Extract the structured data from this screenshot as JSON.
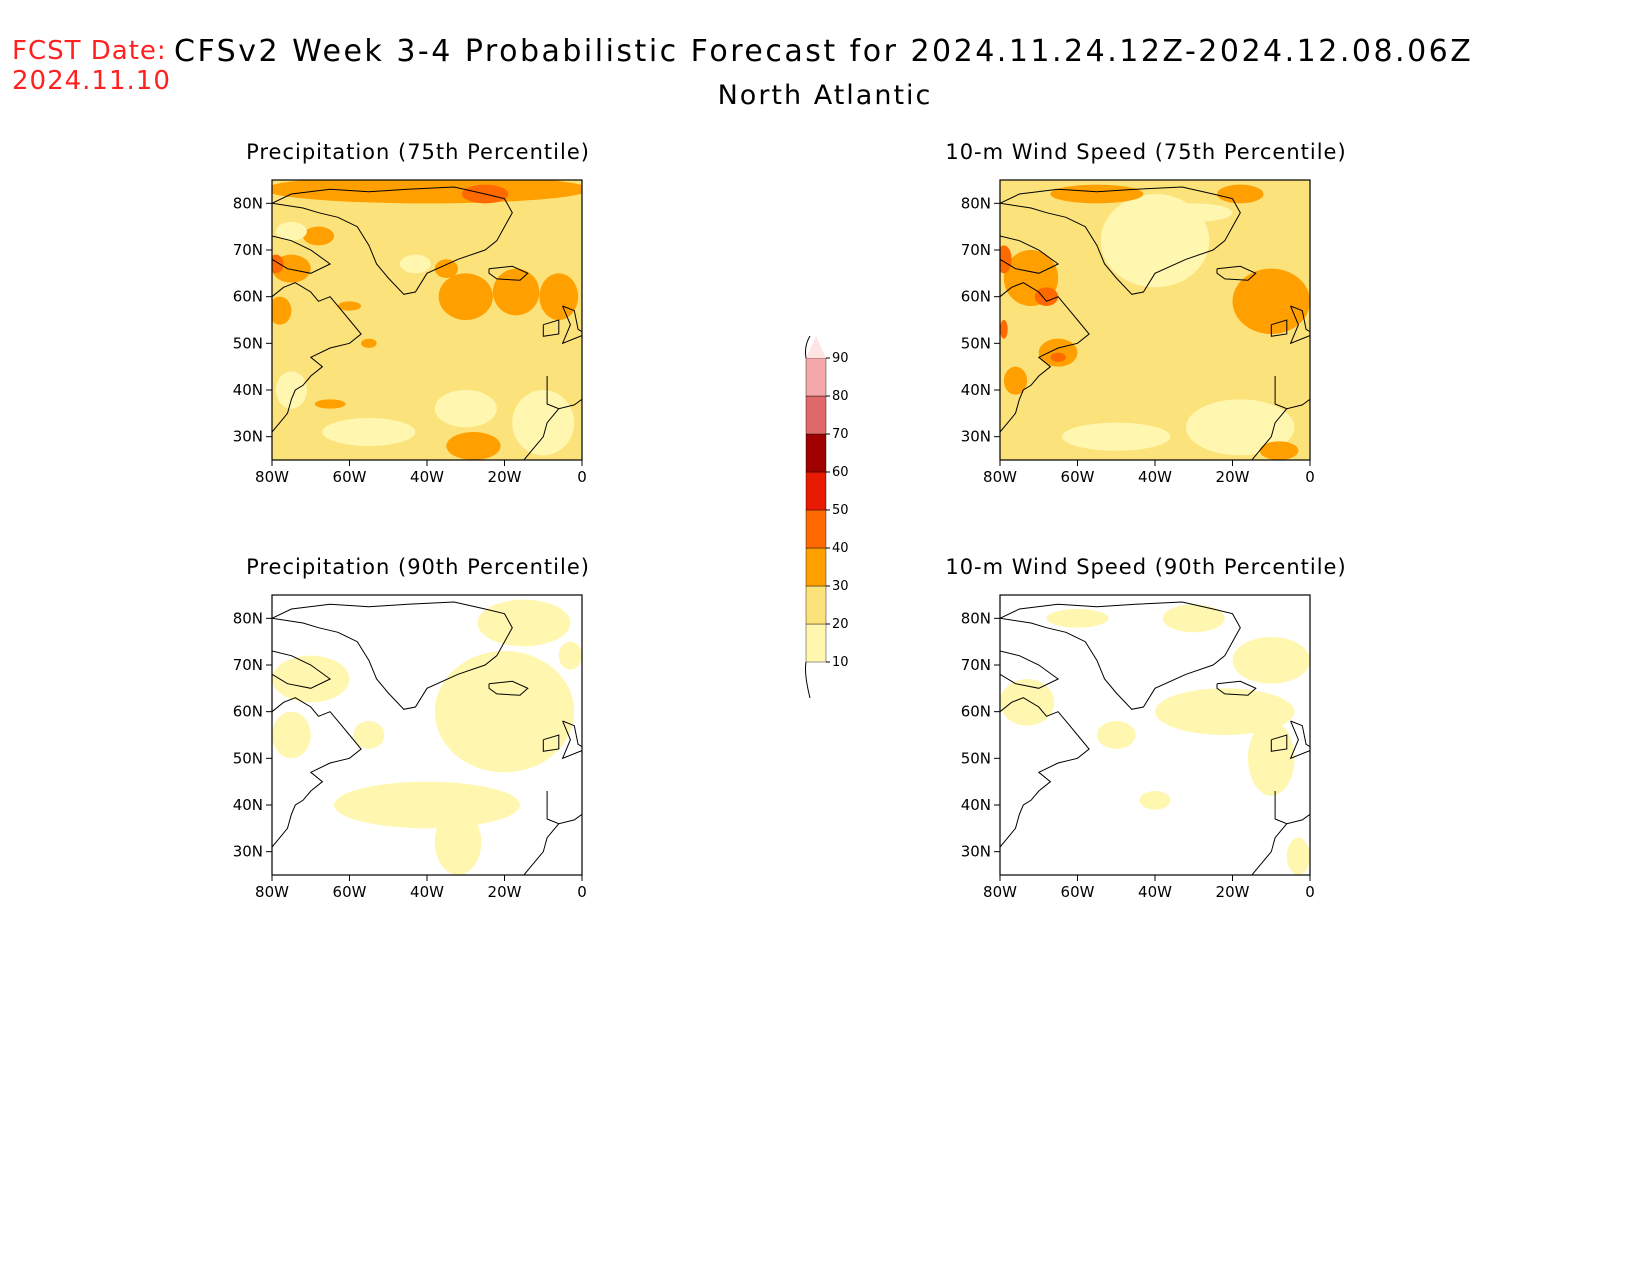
{
  "header": {
    "fcst_label": "FCST Date:",
    "fcst_date": "2024.11.10",
    "title": "CFSv2 Week 3-4 Probabilistic Forecast for 2024.11.24.12Z-2024.12.08.06Z",
    "region": "North Atlantic"
  },
  "palette": {
    "lt10": "#ffffff",
    "10": "#fff7b0",
    "20": "#fce27a",
    "30": "#ff9f00",
    "40": "#ff6a00",
    "50": "#e81a00",
    "60": "#a00000",
    "70": "#e06a6a",
    "80": "#f5a8a8",
    "90": "#ffe4e4"
  },
  "panels": [
    {
      "title": "Precipitation (75th Percentile)",
      "y_ticks": [
        "80N",
        "70N",
        "60N",
        "50N",
        "40N",
        "30N"
      ],
      "x_ticks": [
        "80W",
        "60W",
        "40W",
        "20W",
        "0"
      ],
      "base_level": 20,
      "areas": [
        {
          "level": 30,
          "lon": -40,
          "lat": 83,
          "rlon": 42,
          "rlat": 3
        },
        {
          "level": 40,
          "lon": -25,
          "lat": 82,
          "rlon": 6,
          "rlat": 2
        },
        {
          "level": 30,
          "lon": -30,
          "lat": 60,
          "rlon": 7,
          "rlat": 5
        },
        {
          "level": 30,
          "lon": -17,
          "lat": 61,
          "rlon": 6,
          "rlat": 5
        },
        {
          "level": 30,
          "lon": -6,
          "lat": 60,
          "rlon": 5,
          "rlat": 5
        },
        {
          "level": 30,
          "lon": -68,
          "lat": 73,
          "rlon": 4,
          "rlat": 2
        },
        {
          "level": 30,
          "lon": -75,
          "lat": 66,
          "rlon": 5,
          "rlat": 3
        },
        {
          "level": 40,
          "lon": -79,
          "lat": 67,
          "rlon": 2,
          "rlat": 2
        },
        {
          "level": 30,
          "lon": -78,
          "lat": 57,
          "rlon": 3,
          "rlat": 3
        },
        {
          "level": 30,
          "lon": -28,
          "lat": 28,
          "rlon": 7,
          "rlat": 3
        },
        {
          "level": 30,
          "lon": -55,
          "lat": 50,
          "rlon": 2,
          "rlat": 1
        },
        {
          "level": 30,
          "lon": -60,
          "lat": 58,
          "rlon": 3,
          "rlat": 1
        },
        {
          "level": 30,
          "lon": -35,
          "lat": 66,
          "rlon": 3,
          "rlat": 2
        },
        {
          "level": 30,
          "lon": -65,
          "lat": 37,
          "rlon": 4,
          "rlat": 1
        },
        {
          "level": 10,
          "lon": -30,
          "lat": 36,
          "rlon": 8,
          "rlat": 4
        },
        {
          "level": 10,
          "lon": -10,
          "lat": 33,
          "rlon": 8,
          "rlat": 7
        },
        {
          "level": 10,
          "lon": -55,
          "lat": 31,
          "rlon": 12,
          "rlat": 3
        },
        {
          "level": 10,
          "lon": -75,
          "lat": 74,
          "rlon": 4,
          "rlat": 2
        },
        {
          "level": 10,
          "lon": -43,
          "lat": 67,
          "rlon": 4,
          "rlat": 2
        },
        {
          "level": 10,
          "lon": -75,
          "lat": 40,
          "rlon": 4,
          "rlat": 4
        }
      ]
    },
    {
      "title": "10-m Wind Speed (75th Percentile)",
      "y_ticks": [
        "80N",
        "70N",
        "60N",
        "50N",
        "40N",
        "30N"
      ],
      "x_ticks": [
        "80W",
        "60W",
        "40W",
        "20W",
        "0"
      ],
      "base_level": 20,
      "areas": [
        {
          "level": 10,
          "lon": -40,
          "lat": 72,
          "rlon": 14,
          "rlat": 10
        },
        {
          "level": 10,
          "lon": -18,
          "lat": 32,
          "rlon": 14,
          "rlat": 6
        },
        {
          "level": 10,
          "lon": -50,
          "lat": 30,
          "rlon": 14,
          "rlat": 3
        },
        {
          "level": 10,
          "lon": -30,
          "lat": 78,
          "rlon": 10,
          "rlat": 2
        },
        {
          "level": 30,
          "lon": -10,
          "lat": 59,
          "rlon": 10,
          "rlat": 7
        },
        {
          "level": 30,
          "lon": -72,
          "lat": 64,
          "rlon": 7,
          "rlat": 6
        },
        {
          "level": 30,
          "lon": -65,
          "lat": 48,
          "rlon": 5,
          "rlat": 3
        },
        {
          "level": 30,
          "lon": -76,
          "lat": 42,
          "rlon": 3,
          "rlat": 3
        },
        {
          "level": 30,
          "lon": -55,
          "lat": 82,
          "rlon": 12,
          "rlat": 2
        },
        {
          "level": 30,
          "lon": -18,
          "lat": 82,
          "rlon": 6,
          "rlat": 2
        },
        {
          "level": 30,
          "lon": -8,
          "lat": 27,
          "rlon": 5,
          "rlat": 2
        },
        {
          "level": 40,
          "lon": -68,
          "lat": 60,
          "rlon": 3,
          "rlat": 2
        },
        {
          "level": 40,
          "lon": -79,
          "lat": 68,
          "rlon": 2,
          "rlat": 3
        },
        {
          "level": 40,
          "lon": -79,
          "lat": 53,
          "rlon": 1,
          "rlat": 2
        },
        {
          "level": 40,
          "lon": -65,
          "lat": 47,
          "rlon": 2,
          "rlat": 1
        }
      ]
    },
    {
      "title": "Precipitation (90th Percentile)",
      "y_ticks": [
        "80N",
        "70N",
        "60N",
        "50N",
        "40N",
        "30N"
      ],
      "x_ticks": [
        "80W",
        "60W",
        "40W",
        "20W",
        "0"
      ],
      "base_level": 0,
      "areas": [
        {
          "level": 10,
          "lon": -20,
          "lat": 60,
          "rlon": 18,
          "rlat": 13
        },
        {
          "level": 10,
          "lon": -40,
          "lat": 40,
          "rlon": 24,
          "rlat": 5
        },
        {
          "level": 10,
          "lon": -32,
          "lat": 32,
          "rlon": 6,
          "rlat": 7
        },
        {
          "level": 10,
          "lon": -15,
          "lat": 79,
          "rlon": 12,
          "rlat": 5
        },
        {
          "level": 10,
          "lon": -70,
          "lat": 67,
          "rlon": 10,
          "rlat": 5
        },
        {
          "level": 10,
          "lon": -75,
          "lat": 55,
          "rlon": 5,
          "rlat": 5
        },
        {
          "level": 10,
          "lon": -55,
          "lat": 55,
          "rlon": 4,
          "rlat": 3
        },
        {
          "level": 10,
          "lon": -3,
          "lat": 72,
          "rlon": 3,
          "rlat": 3
        }
      ]
    },
    {
      "title": "10-m Wind Speed (90th Percentile)",
      "y_ticks": [
        "80N",
        "70N",
        "60N",
        "50N",
        "40N",
        "30N"
      ],
      "x_ticks": [
        "80W",
        "60W",
        "40W",
        "20W",
        "0"
      ],
      "base_level": 0,
      "areas": [
        {
          "level": 10,
          "lon": -22,
          "lat": 60,
          "rlon": 18,
          "rlat": 5
        },
        {
          "level": 10,
          "lon": -10,
          "lat": 71,
          "rlon": 10,
          "rlat": 5
        },
        {
          "level": 10,
          "lon": -30,
          "lat": 80,
          "rlon": 8,
          "rlat": 3
        },
        {
          "level": 10,
          "lon": -10,
          "lat": 50,
          "rlon": 6,
          "rlat": 8
        },
        {
          "level": 10,
          "lon": -73,
          "lat": 62,
          "rlon": 7,
          "rlat": 5
        },
        {
          "level": 10,
          "lon": -50,
          "lat": 55,
          "rlon": 5,
          "rlat": 3
        },
        {
          "level": 10,
          "lon": -3,
          "lat": 29,
          "rlon": 3,
          "rlat": 4
        },
        {
          "level": 10,
          "lon": -40,
          "lat": 41,
          "rlon": 4,
          "rlat": 2
        },
        {
          "level": 10,
          "lon": -60,
          "lat": 80,
          "rlon": 8,
          "rlat": 2
        }
      ]
    }
  ],
  "colorbar": {
    "labels": [
      "10",
      "20",
      "30",
      "40",
      "50",
      "60",
      "70",
      "80",
      "90"
    ]
  }
}
